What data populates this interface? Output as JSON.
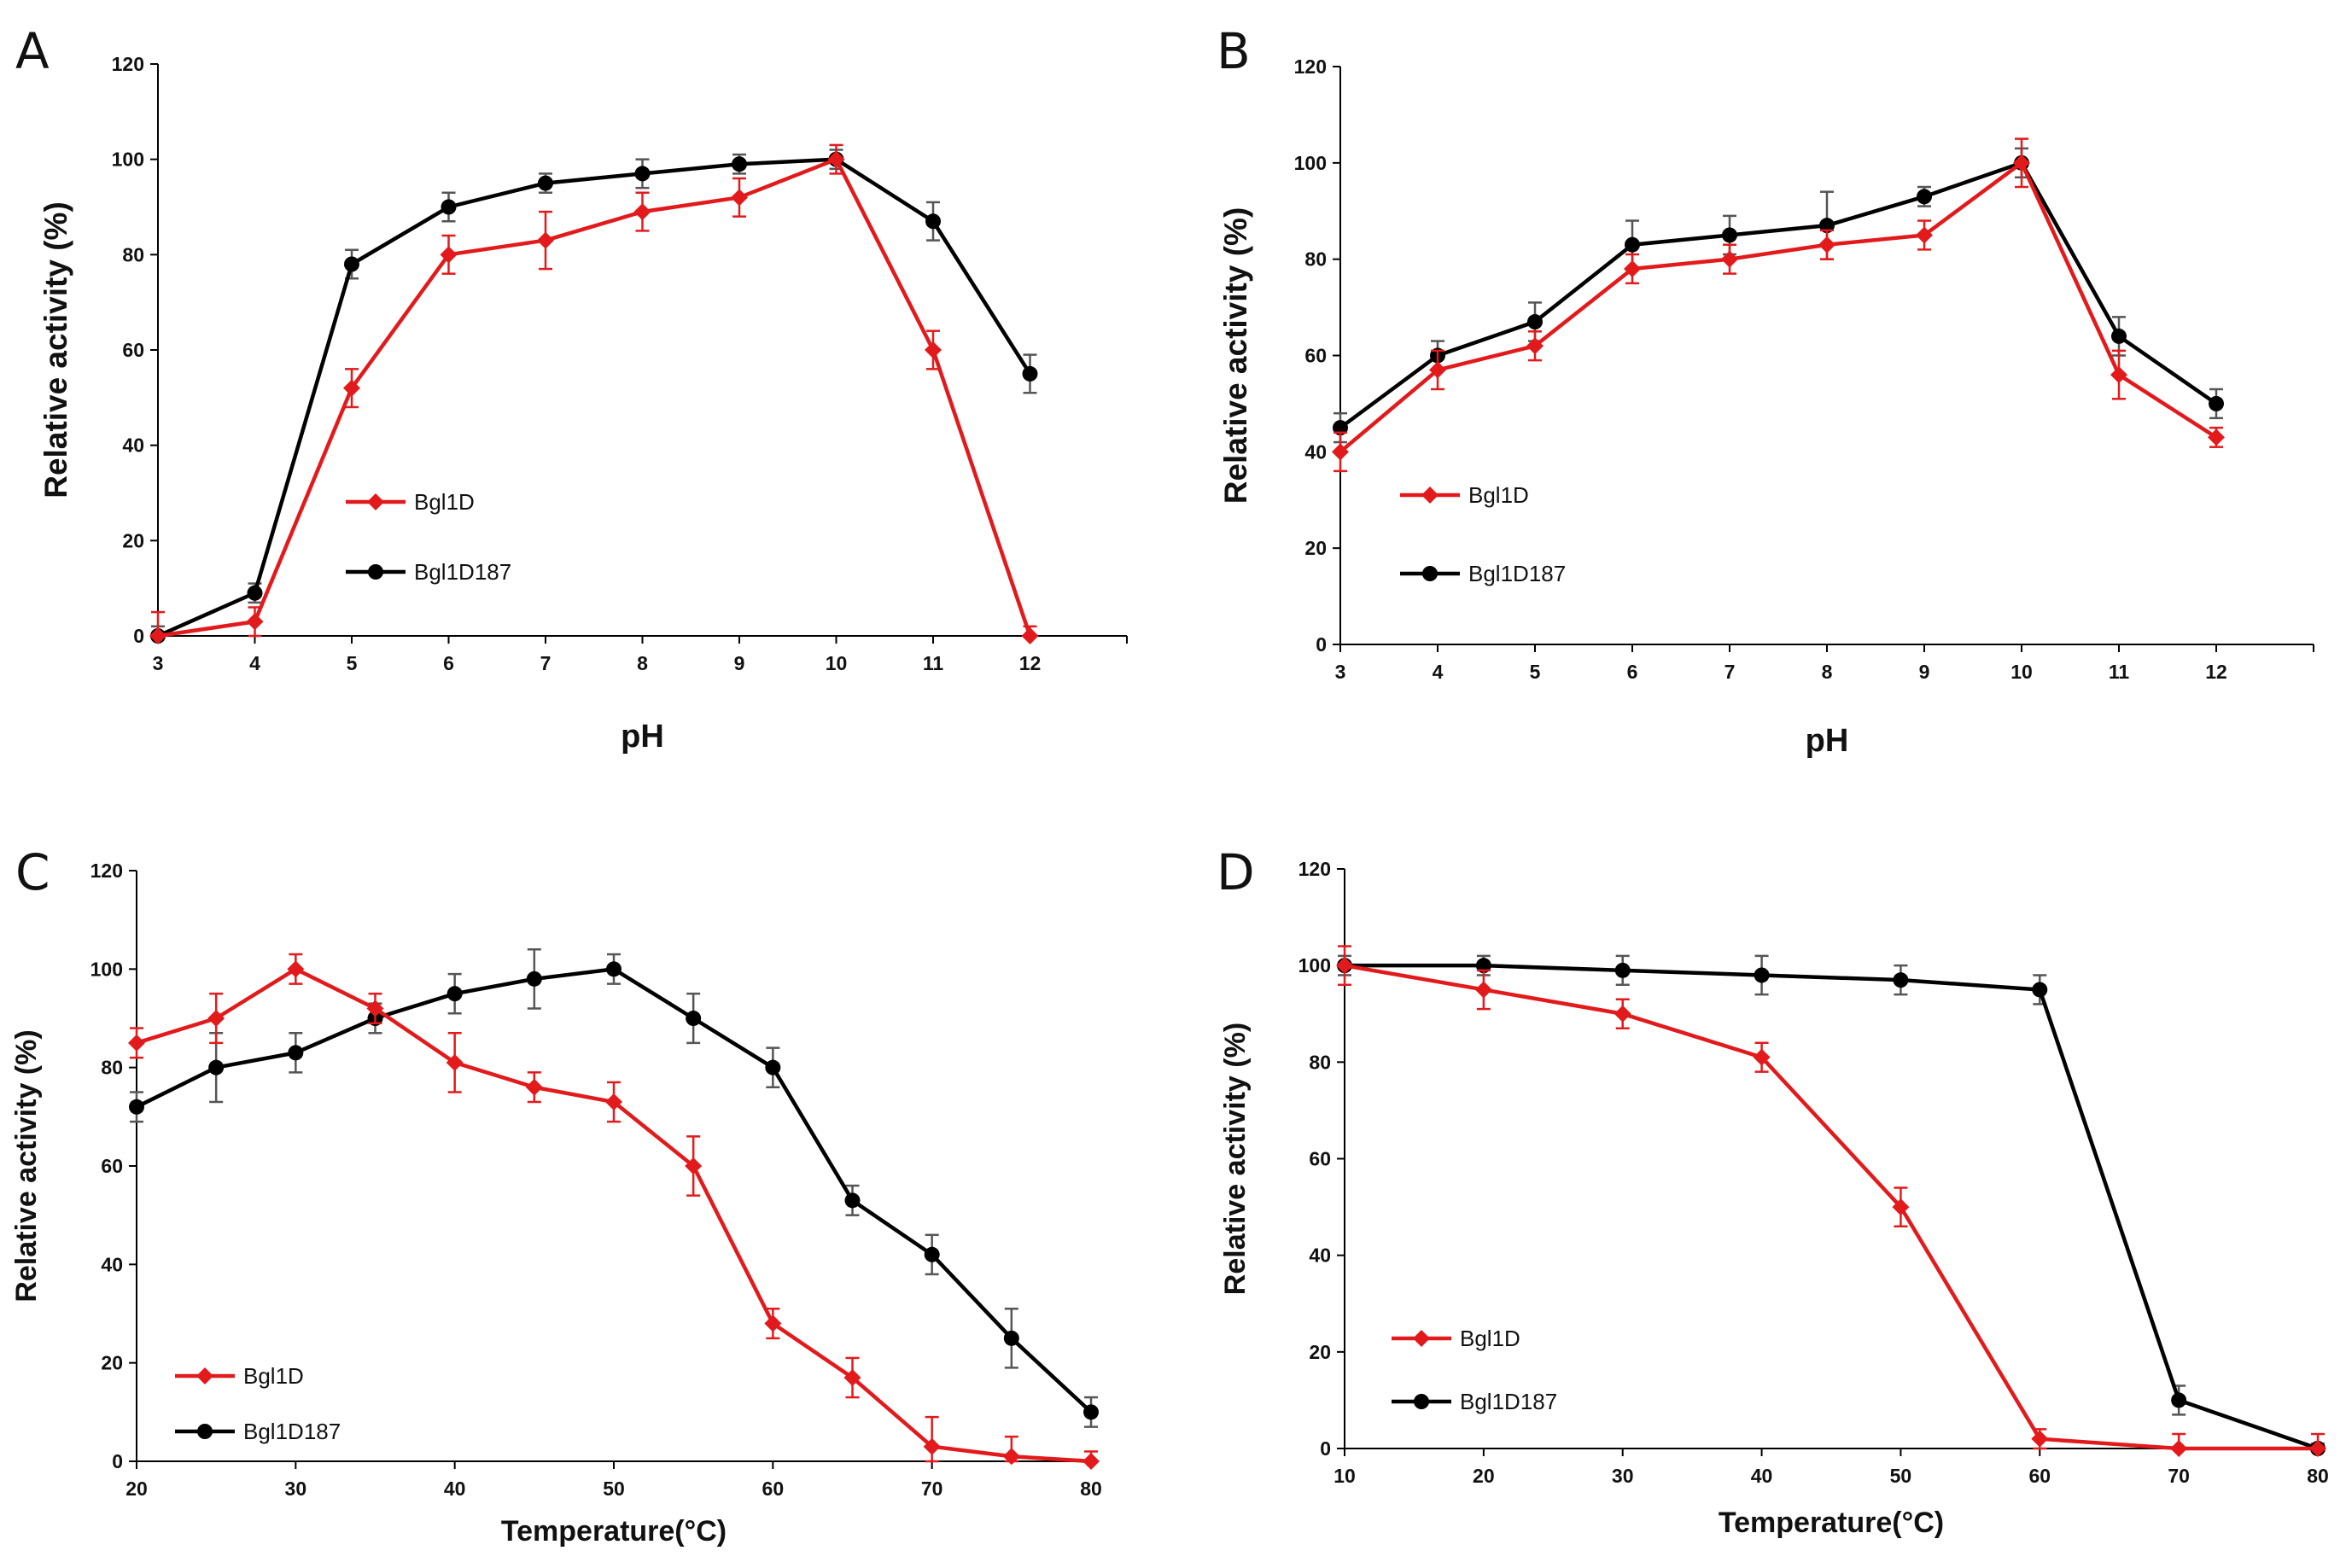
{
  "colors": {
    "bgl1d": "#e31a1c",
    "bgl1d187": "#000000",
    "axis": "#000000",
    "errorbar_black": "#555555"
  },
  "chart_data": [
    {
      "panel": "A",
      "type": "line",
      "xlabel": "pH",
      "ylabel": "Relative activity (%)",
      "xlim": [
        3,
        13
      ],
      "ylim": [
        0,
        120
      ],
      "xticks": [
        3,
        4,
        5,
        6,
        7,
        8,
        9,
        10,
        11,
        12
      ],
      "yticks": [
        0,
        20,
        40,
        60,
        80,
        100,
        120
      ],
      "legend_position": "center",
      "series": [
        {
          "name": "Bgl1D",
          "color": "#e31a1c",
          "marker": "diamond",
          "x": [
            3,
            4,
            5,
            6,
            7,
            8,
            9,
            10,
            11,
            12
          ],
          "y": [
            0,
            3,
            52,
            80,
            83,
            89,
            92,
            100,
            60,
            0
          ],
          "err": [
            5,
            3,
            4,
            4,
            6,
            4,
            4,
            3,
            4,
            2
          ]
        },
        {
          "name": "Bgl1D187",
          "color": "#000000",
          "marker": "circle",
          "x": [
            3,
            4,
            5,
            6,
            7,
            8,
            9,
            10,
            11,
            12
          ],
          "y": [
            0,
            9,
            78,
            90,
            95,
            97,
            99,
            100,
            87,
            55
          ],
          "err": [
            2,
            2,
            3,
            3,
            2,
            3,
            2,
            2,
            4,
            4
          ]
        }
      ]
    },
    {
      "panel": "B",
      "type": "line",
      "xlabel": "pH",
      "ylabel": "Relative activity (%)",
      "xlim": [
        3,
        13
      ],
      "ylim": [
        0,
        120
      ],
      "xticks": [
        3,
        4,
        5,
        6,
        7,
        8,
        9,
        10,
        11,
        12
      ],
      "yticks": [
        0,
        20,
        40,
        60,
        80,
        100,
        120
      ],
      "legend_position": "lower-left",
      "series": [
        {
          "name": "Bgl1D",
          "color": "#e31a1c",
          "marker": "diamond",
          "x": [
            3,
            4,
            5,
            6,
            7,
            8,
            9,
            10,
            11,
            12
          ],
          "y": [
            40,
            57,
            62,
            78,
            80,
            83,
            85,
            100,
            56,
            43
          ],
          "err": [
            4,
            4,
            3,
            3,
            3,
            3,
            3,
            5,
            5,
            2
          ]
        },
        {
          "name": "Bgl1D187",
          "color": "#000000",
          "marker": "circle",
          "x": [
            3,
            4,
            5,
            6,
            7,
            8,
            9,
            10,
            11,
            12
          ],
          "y": [
            45,
            60,
            67,
            83,
            85,
            87,
            93,
            100,
            64,
            50
          ],
          "err": [
            3,
            3,
            4,
            5,
            4,
            7,
            2,
            3,
            4,
            3
          ]
        }
      ]
    },
    {
      "panel": "C",
      "type": "line",
      "xlabel": "Temperature(°C)",
      "ylabel": "Relative activity (%)",
      "xlim": [
        20,
        80
      ],
      "ylim": [
        0,
        120
      ],
      "xticks": [
        20,
        30,
        40,
        50,
        60,
        70,
        80
      ],
      "yticks": [
        0,
        20,
        40,
        60,
        80,
        100,
        120
      ],
      "legend_position": "lower-left",
      "series": [
        {
          "name": "Bgl1D",
          "color": "#e31a1c",
          "marker": "diamond",
          "x": [
            20,
            25,
            30,
            35,
            40,
            45,
            50,
            55,
            60,
            65,
            70,
            75,
            80
          ],
          "y": [
            85,
            90,
            100,
            92,
            81,
            76,
            73,
            60,
            28,
            17,
            3,
            1,
            0
          ],
          "err": [
            3,
            5,
            3,
            3,
            6,
            3,
            4,
            6,
            3,
            4,
            6,
            4,
            2
          ]
        },
        {
          "name": "Bgl1D187",
          "color": "#000000",
          "marker": "circle",
          "x": [
            20,
            25,
            30,
            35,
            40,
            45,
            50,
            55,
            60,
            65,
            70,
            75,
            80
          ],
          "y": [
            72,
            80,
            83,
            90,
            95,
            98,
            100,
            90,
            80,
            53,
            42,
            25,
            10
          ],
          "err": [
            3,
            7,
            4,
            3,
            4,
            6,
            3,
            5,
            4,
            3,
            4,
            6,
            3
          ]
        }
      ]
    },
    {
      "panel": "D",
      "type": "line",
      "xlabel": "Temperature(°C)",
      "ylabel": "Relative activity (%)",
      "xlim": [
        10,
        80
      ],
      "ylim": [
        0,
        120
      ],
      "xticks": [
        10,
        20,
        30,
        40,
        50,
        60,
        70,
        80
      ],
      "yticks": [
        0,
        20,
        40,
        60,
        80,
        100,
        120
      ],
      "legend_position": "lower-left",
      "series": [
        {
          "name": "Bgl1D",
          "color": "#e31a1c",
          "marker": "diamond",
          "x": [
            10,
            20,
            30,
            40,
            50,
            60,
            70,
            80
          ],
          "y": [
            100,
            95,
            90,
            81,
            50,
            2,
            0,
            0
          ],
          "err": [
            4,
            4,
            3,
            3,
            4,
            2,
            3,
            3
          ]
        },
        {
          "name": "Bgl1D187",
          "color": "#000000",
          "marker": "circle",
          "x": [
            10,
            20,
            30,
            40,
            50,
            60,
            70,
            80
          ],
          "y": [
            100,
            100,
            99,
            98,
            97,
            95,
            10,
            0
          ],
          "err": [
            2,
            2,
            3,
            4,
            3,
            3,
            3,
            1
          ]
        }
      ]
    }
  ]
}
